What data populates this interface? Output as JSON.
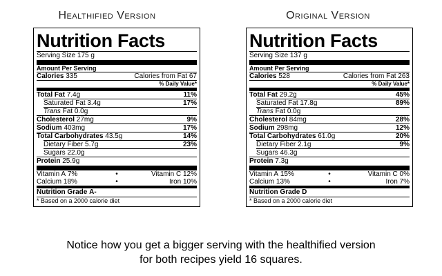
{
  "headings": {
    "left": "Healthified Version",
    "right": "Original Version"
  },
  "labels": {
    "title": "Nutrition Facts",
    "amount_per_serving": "Amount Per Serving",
    "calories": "Calories",
    "daily_value": "% Daily Value*",
    "total_fat": "Total Fat",
    "saturated_fat": "Saturated Fat",
    "trans_fat": "Trans",
    "trans_fat_suffix": "Fat",
    "cholesterol": "Cholesterol",
    "sodium": "Sodium",
    "total_carbs": "Total Carbohydrates",
    "dietary_fiber": "Dietary Fiber",
    "sugars": "Sugars",
    "protein": "Protein",
    "vitamin_a": "Vitamin A",
    "vitamin_c": "Vitamin C",
    "calcium": "Calcium",
    "iron": "Iron",
    "bullet": "•",
    "grade": "Nutrition Grade",
    "footnote": "* Based on a 2000 calorie diet"
  },
  "healthified": {
    "serving": "Serving Size 175 g",
    "calories": "335",
    "calories_from_fat": "Calories from Fat 67",
    "total_fat": "7.4g",
    "total_fat_pct": "11%",
    "saturated_fat": "3.4g",
    "saturated_fat_pct": "17%",
    "trans_fat": "0.0g",
    "cholesterol": "27mg",
    "cholesterol_pct": "9%",
    "sodium": "403mg",
    "sodium_pct": "17%",
    "total_carbs": "43.5g",
    "total_carbs_pct": "14%",
    "dietary_fiber": "5.7g",
    "dietary_fiber_pct": "23%",
    "sugars": "22.0g",
    "protein": "25.9g",
    "vitamin_a": "7%",
    "vitamin_c": "12%",
    "calcium": "18%",
    "iron": "10%",
    "grade": "A-"
  },
  "original": {
    "serving": "Serving Size 137 g",
    "calories": "528",
    "calories_from_fat": "Calories from Fat 263",
    "total_fat": "29.2g",
    "total_fat_pct": "45%",
    "saturated_fat": "17.8g",
    "saturated_fat_pct": "89%",
    "trans_fat": "0.0g",
    "cholesterol": "84mg",
    "cholesterol_pct": "28%",
    "sodium": "298mg",
    "sodium_pct": "12%",
    "total_carbs": "61.0g",
    "total_carbs_pct": "20%",
    "dietary_fiber": "2.1g",
    "dietary_fiber_pct": "9%",
    "sugars": "46.3g",
    "protein": "7.3g",
    "vitamin_a": "15%",
    "vitamin_c": "0%",
    "calcium": "13%",
    "iron": "7%",
    "grade": "D"
  },
  "caption": {
    "line1": "Notice how you get a bigger serving with the healthified version",
    "line2": "for both recipes yield 16 squares."
  }
}
